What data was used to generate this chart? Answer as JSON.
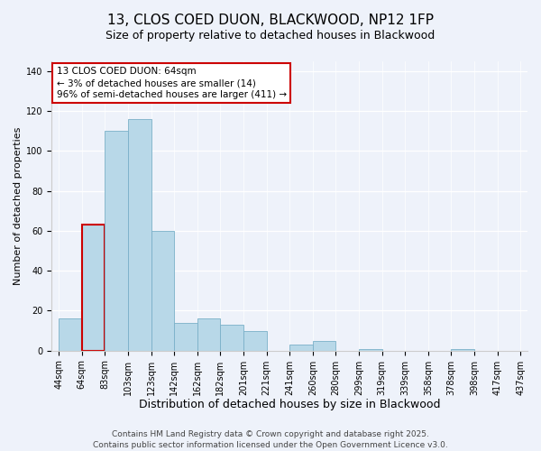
{
  "title": "13, CLOS COED DUON, BLACKWOOD, NP12 1FP",
  "subtitle": "Size of property relative to detached houses in Blackwood",
  "xlabel": "Distribution of detached houses by size in Blackwood",
  "ylabel": "Number of detached properties",
  "all_labels": [
    "44sqm",
    "64sqm",
    "83sqm",
    "103sqm",
    "123sqm",
    "142sqm",
    "162sqm",
    "182sqm",
    "201sqm",
    "221sqm",
    "241sqm",
    "260sqm",
    "280sqm",
    "299sqm",
    "319sqm",
    "339sqm",
    "358sqm",
    "378sqm",
    "398sqm",
    "417sqm",
    "437sqm"
  ],
  "bin_edges": [
    0,
    1,
    2,
    3,
    4,
    5,
    6,
    7,
    8,
    9,
    10,
    11,
    12,
    13,
    14,
    15,
    16,
    17,
    18,
    19,
    20
  ],
  "heights": [
    16,
    63,
    110,
    116,
    60,
    14,
    16,
    13,
    10,
    0,
    3,
    5,
    0,
    1,
    0,
    0,
    0,
    1,
    0,
    0
  ],
  "bar_color": "#b8d8e8",
  "bar_edge_color": "#7ab0c8",
  "highlight_bar_index": 1,
  "highlight_bar_edge_color": "#cc0000",
  "annotation_line1": "13 CLOS COED DUON: 64sqm",
  "annotation_line2": "← 3% of detached houses are smaller (14)",
  "annotation_line3": "96% of semi-detached houses are larger (411) →",
  "annotation_box_edge_color": "#cc0000",
  "ylim": [
    0,
    145
  ],
  "yticks": [
    0,
    20,
    40,
    60,
    80,
    100,
    120,
    140
  ],
  "background_color": "#eef2fa",
  "footer_line1": "Contains HM Land Registry data © Crown copyright and database right 2025.",
  "footer_line2": "Contains public sector information licensed under the Open Government Licence v3.0.",
  "title_fontsize": 11,
  "subtitle_fontsize": 9,
  "xlabel_fontsize": 9,
  "ylabel_fontsize": 8,
  "annotation_fontsize": 7.5,
  "footer_fontsize": 6.5,
  "tick_fontsize": 7
}
